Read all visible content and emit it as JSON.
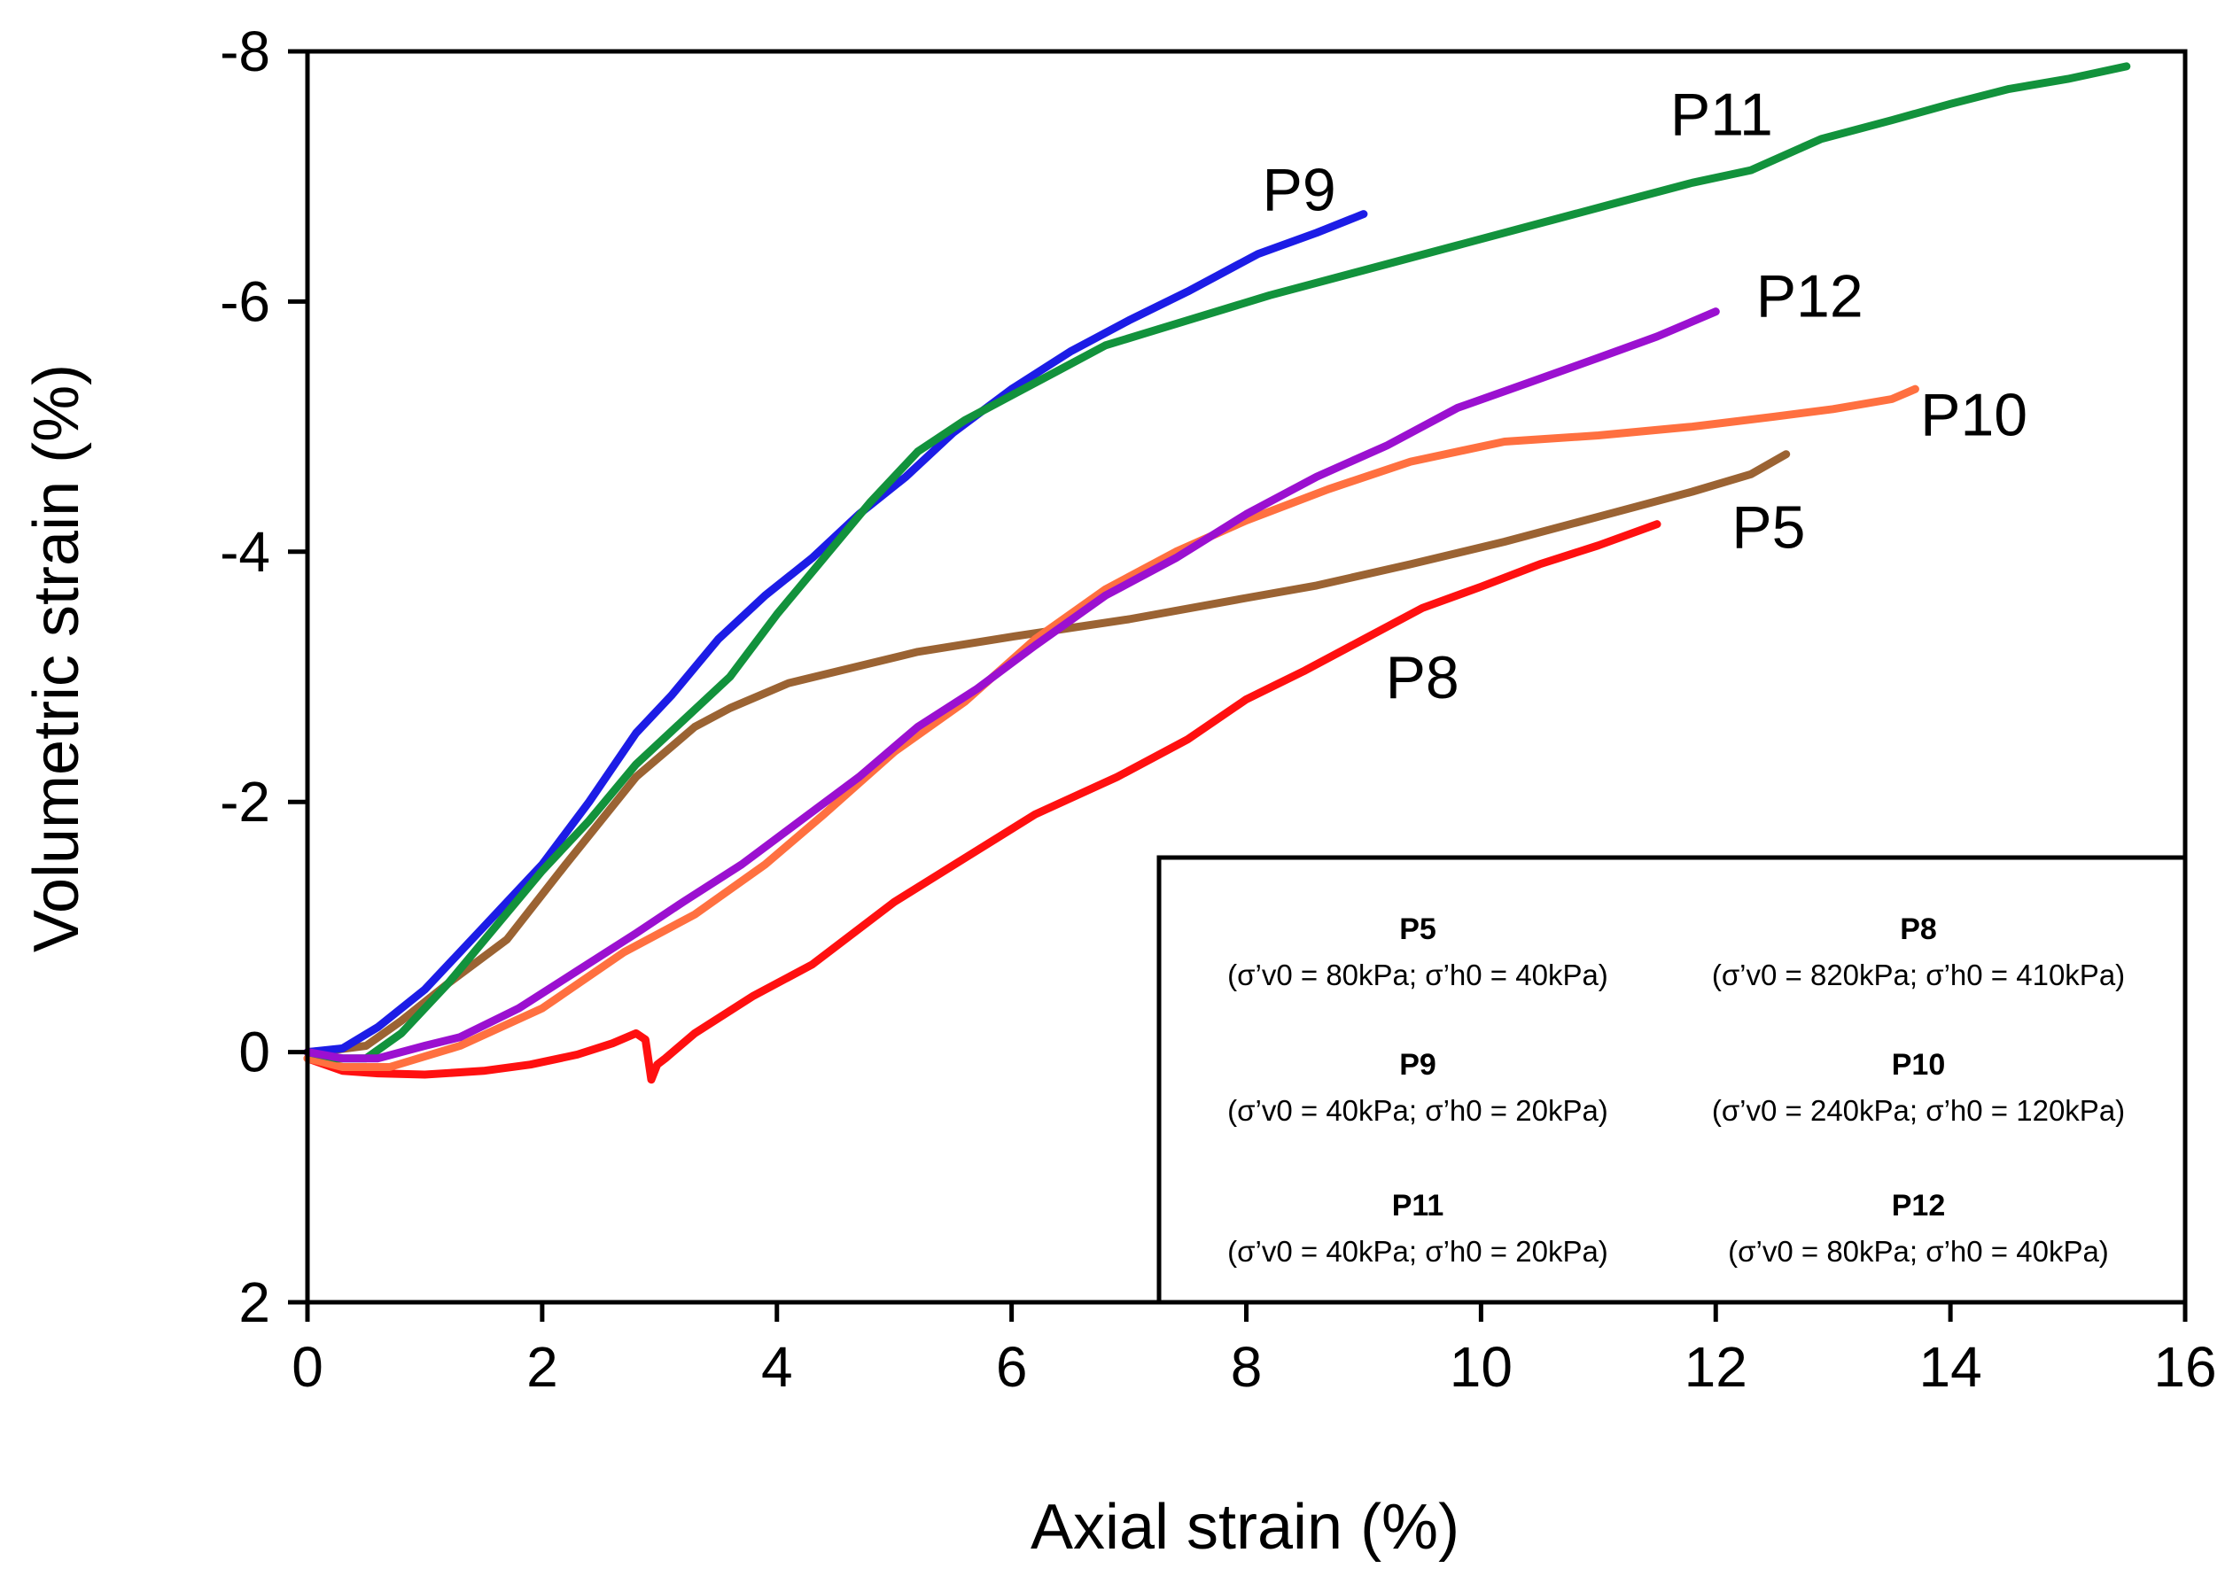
{
  "chart_data": {
    "type": "line",
    "xlabel": "Axial strain (%)",
    "ylabel": "Volumetric strain (%)",
    "xlim": [
      0,
      16
    ],
    "ylim": [
      2,
      -8
    ],
    "y_inverted": true,
    "xticks": [
      0,
      2,
      4,
      6,
      8,
      10,
      12,
      14,
      16
    ],
    "xtick_labels": [
      "0",
      "2",
      "4",
      "6",
      "8",
      "10",
      "12",
      "14",
      "16"
    ],
    "yticks": [
      -8,
      -6,
      -4,
      -2,
      0,
      2
    ],
    "ytick_labels": [
      "-8",
      "-6",
      "-4",
      "-2",
      "0",
      "2"
    ],
    "grid": false,
    "legend_placement": "bottom-right",
    "series": [
      {
        "name": "P5",
        "color": "#9b6333",
        "label_at": [
          12.45,
          -4.2
        ],
        "condition": "(σ’v0 = 80kPa; σ’h0 = 40kPa)",
        "x": [
          0,
          0.25,
          0.5,
          0.8,
          1.2,
          1.7,
          2.2,
          2.8,
          3.3,
          3.6,
          4.1,
          5.2,
          6.0,
          7.0,
          8.0,
          8.6,
          9.4,
          10.2,
          11.0,
          11.8,
          12.3,
          12.6
        ],
        "y": [
          0,
          -0.02,
          -0.05,
          -0.25,
          -0.55,
          -0.9,
          -1.5,
          -2.2,
          -2.6,
          -2.75,
          -2.95,
          -3.2,
          -3.32,
          -3.46,
          -3.63,
          -3.73,
          -3.9,
          -4.08,
          -4.28,
          -4.48,
          -4.62,
          -4.78
        ]
      },
      {
        "name": "P8",
        "color": "#ff1010",
        "label_at": [
          9.5,
          -3.0
        ],
        "condition": "(σ’v0 = 820kPa; σ’h0 = 410kPa)",
        "x": [
          0,
          0.3,
          0.6,
          1.0,
          1.5,
          1.9,
          2.3,
          2.6,
          2.8,
          2.88,
          2.93,
          2.98,
          3.05,
          3.3,
          3.8,
          4.3,
          5.0,
          5.6,
          6.2,
          6.9,
          7.5,
          8.0,
          8.5,
          9.0,
          9.5,
          10.0,
          10.5,
          11.0,
          11.5
        ],
        "y": [
          0.05,
          0.15,
          0.17,
          0.18,
          0.15,
          0.1,
          0.02,
          -0.07,
          -0.15,
          -0.1,
          0.22,
          0.1,
          0.05,
          -0.15,
          -0.45,
          -0.7,
          -1.2,
          -1.55,
          -1.9,
          -2.2,
          -2.5,
          -2.82,
          -3.05,
          -3.3,
          -3.55,
          -3.72,
          -3.9,
          -4.05,
          -4.22
        ]
      },
      {
        "name": "P9",
        "color": "#1c1ce6",
        "label_at": [
          8.45,
          -6.9
        ],
        "condition": "(σ’v0 = 40kPa; σ’h0 = 20kPa)",
        "x": [
          0,
          0.3,
          0.6,
          1.0,
          1.5,
          2.0,
          2.4,
          2.8,
          3.1,
          3.5,
          3.9,
          4.3,
          4.7,
          5.1,
          5.5,
          6.0,
          6.5,
          7.0,
          7.5,
          8.1,
          8.6,
          9.0
        ],
        "y": [
          0,
          -0.03,
          -0.2,
          -0.5,
          -1.0,
          -1.5,
          -2.0,
          -2.55,
          -2.85,
          -3.3,
          -3.65,
          -3.95,
          -4.3,
          -4.6,
          -4.95,
          -5.3,
          -5.6,
          -5.85,
          -6.08,
          -6.38,
          -6.55,
          -6.7
        ]
      },
      {
        "name": "P10",
        "color": "#ff7040",
        "label_at": [
          14.2,
          -5.1
        ],
        "condition": "(σ’v0 = 240kPa; σ’h0 = 120kPa)",
        "x": [
          0,
          0.3,
          0.7,
          1.3,
          2.0,
          2.7,
          3.3,
          3.9,
          4.4,
          5.0,
          5.6,
          6.2,
          6.8,
          7.4,
          8.0,
          8.7,
          9.4,
          10.2,
          11.0,
          11.8,
          12.5,
          13.0,
          13.5,
          13.7
        ],
        "y": [
          0.05,
          0.12,
          0.12,
          -0.05,
          -0.35,
          -0.8,
          -1.1,
          -1.5,
          -1.9,
          -2.4,
          -2.8,
          -3.3,
          -3.7,
          -4.0,
          -4.25,
          -4.5,
          -4.72,
          -4.88,
          -4.93,
          -5.0,
          -5.08,
          -5.14,
          -5.22,
          -5.3
        ]
      },
      {
        "name": "P11",
        "color": "#12923c",
        "label_at": [
          12.05,
          -7.5
        ],
        "condition": "(σ’v0 = 40kPa; σ’h0 = 20kPa)",
        "x": [
          0,
          0.25,
          0.5,
          0.8,
          1.2,
          1.6,
          2.0,
          2.4,
          2.8,
          3.2,
          3.6,
          4.0,
          4.4,
          4.8,
          5.2,
          5.6,
          6.0,
          6.4,
          6.8,
          7.5,
          8.2,
          9.0,
          9.8,
          10.6,
          11.2,
          11.8,
          12.3,
          12.9,
          13.5,
          14.0,
          14.5,
          15.0,
          15.5
        ],
        "y": [
          0,
          0.05,
          0.05,
          -0.15,
          -0.55,
          -1.0,
          -1.45,
          -1.85,
          -2.3,
          -2.65,
          -3.0,
          -3.5,
          -3.95,
          -4.4,
          -4.8,
          -5.05,
          -5.25,
          -5.45,
          -5.65,
          -5.85,
          -6.05,
          -6.25,
          -6.45,
          -6.65,
          -6.8,
          -6.95,
          -7.05,
          -7.3,
          -7.45,
          -7.58,
          -7.7,
          -7.78,
          -7.88
        ]
      },
      {
        "name": "P12",
        "color": "#9b10d0",
        "label_at": [
          12.8,
          -6.05
        ],
        "condition": "(σ’v0 = 80kPa; σ’h0 = 40kPa)",
        "x": [
          0,
          0.3,
          0.6,
          1.0,
          1.3,
          1.8,
          2.3,
          2.8,
          3.2,
          3.7,
          4.2,
          4.7,
          5.2,
          5.7,
          6.2,
          6.8,
          7.4,
          8.0,
          8.6,
          9.2,
          9.8,
          10.4,
          11.0,
          11.5,
          12.0
        ],
        "y": [
          0,
          0.05,
          0.05,
          -0.05,
          -0.12,
          -0.35,
          -0.65,
          -0.95,
          -1.2,
          -1.5,
          -1.85,
          -2.2,
          -2.6,
          -2.9,
          -3.25,
          -3.65,
          -3.95,
          -4.3,
          -4.6,
          -4.85,
          -5.15,
          -5.35,
          -5.55,
          -5.72,
          -5.92
        ]
      }
    ]
  }
}
